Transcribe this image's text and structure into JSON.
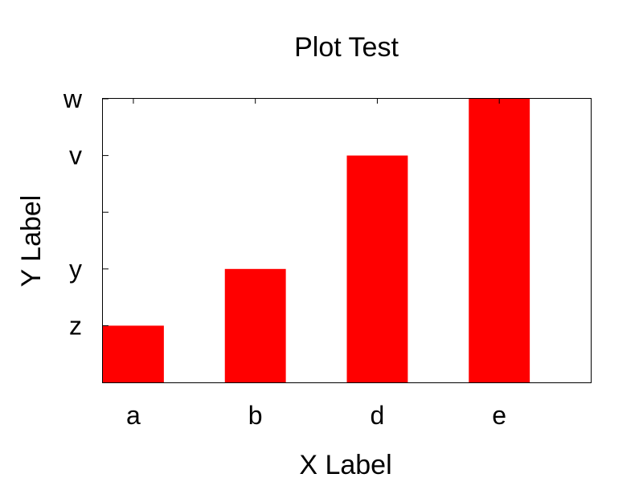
{
  "chart_data": {
    "type": "bar",
    "title": "Plot Test",
    "xlabel": "X Label",
    "ylabel": "Y Label",
    "categories": [
      "a",
      "b",
      "d",
      "e"
    ],
    "values": [
      1,
      2,
      4,
      5
    ],
    "ylim": [
      0,
      5
    ],
    "yticks": [
      {
        "value": 1,
        "label": "z"
      },
      {
        "value": 2,
        "label": "y"
      },
      {
        "value": 3,
        "label": ""
      },
      {
        "value": 4,
        "label": "v"
      },
      {
        "value": 5,
        "label": "w"
      }
    ],
    "bar_color": "#ff0000",
    "grid": false,
    "legend": "none"
  }
}
